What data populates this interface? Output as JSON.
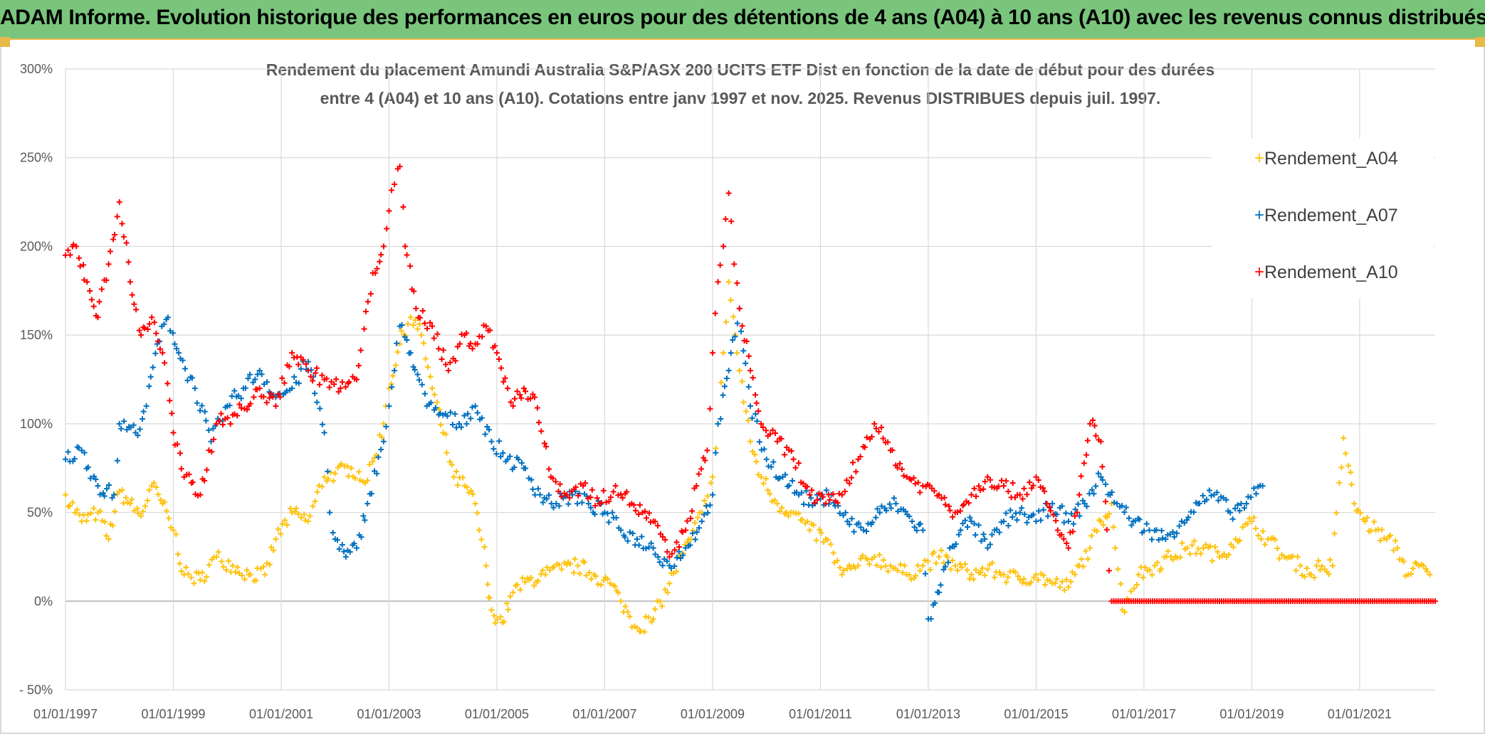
{
  "page_title": "ADAM Informe. Evolution historique des performances en euros pour des détentions de 4 ans (A04) à 10 ans (A10) avec les revenus connus distribués",
  "colors": {
    "banner": "#79c57c",
    "A04": "#ffc20e",
    "A07": "#0070c0",
    "A10": "#ff0000",
    "grid": "#d9d9d9",
    "text": "#595959"
  },
  "chart_data": {
    "type": "scatter",
    "title_lines": [
      "Rendement du placement Amundi Australia S&P/ASX 200 UCITS ETF Dist en fonction de la date de début pour des durées",
      "entre 4 (A04) et 10 ans (A10). Cotations entre janv 1997 et nov. 2025. Revenus DISTRIBUES depuis juil. 1997."
    ],
    "x_tick_labels": [
      "01/01/1997",
      "01/01/1999",
      "01/01/2001",
      "01/01/2003",
      "01/01/2005",
      "01/01/2007",
      "01/01/2009",
      "01/01/2011",
      "01/01/2013",
      "01/01/2015",
      "01/01/2017",
      "01/01/2019",
      "01/01/2021"
    ],
    "xlim": [
      1997.0,
      2022.4
    ],
    "y_tick_labels": [
      "300%",
      "250%",
      "200%",
      "150%",
      "100%",
      "50%",
      "0%",
      "- 50%"
    ],
    "y_ticks": [
      300,
      250,
      200,
      150,
      100,
      50,
      0,
      -50
    ],
    "ylim": [
      -50,
      300
    ],
    "legend": [
      "Rendement_A04",
      "Rendement_A07",
      "Rendement_A10"
    ],
    "legend_position": "right",
    "marker": "+",
    "series": [
      {
        "name": "Rendement_A04",
        "x": [
          1997.0,
          1997.3,
          1997.6,
          1997.8,
          1998.0,
          1998.2,
          1998.4,
          1998.6,
          1998.8,
          1999.0,
          1999.2,
          1999.5,
          1999.8,
          2000.1,
          2000.4,
          2000.7,
          2000.9,
          2001.2,
          2001.5,
          2001.8,
          2002.0,
          2002.3,
          2002.6,
          2002.9,
          2003.0,
          2003.2,
          2003.4,
          2003.6,
          2003.8,
          2004.0,
          2004.2,
          2004.4,
          2004.6,
          2004.8,
          2004.85,
          2004.9,
          2005.1,
          2005.3,
          2005.6,
          2005.9,
          2006.2,
          2006.5,
          2006.8,
          2007.1,
          2007.3,
          2007.6,
          2007.9,
          2008.2,
          2008.4,
          2008.6,
          2008.8,
          2009.0,
          2009.1,
          2009.2,
          2009.3,
          2009.5,
          2009.7,
          2009.9,
          2010.2,
          2010.5,
          2010.8,
          2011.1,
          2011.4,
          2011.7,
          2012.0,
          2012.3,
          2012.6,
          2012.9,
          2013.2,
          2013.5,
          2013.8,
          2014.1,
          2014.4,
          2014.7,
          2015.0,
          2015.3,
          2015.6,
          2015.8,
          2016.0,
          2016.2,
          2016.4,
          2016.6,
          2016.9,
          2017.2,
          2017.5,
          2017.8,
          2018.1,
          2018.4,
          2018.7,
          2019.0,
          2019.3,
          2019.6,
          2019.9,
          2020.1,
          2020.2,
          2020.35,
          2020.5,
          2020.7,
          2020.9,
          2021.1,
          2021.3,
          2021.5,
          2021.7,
          2021.9,
          2022.1,
          2022.3
        ],
        "y": [
          60,
          45,
          50,
          35,
          62,
          55,
          48,
          65,
          55,
          40,
          15,
          12,
          25,
          20,
          15,
          15,
          35,
          50,
          45,
          70,
          72,
          75,
          68,
          100,
          120,
          145,
          160,
          150,
          120,
          95,
          70,
          65,
          55,
          20,
          2,
          -5,
          -12,
          5,
          12,
          15,
          18,
          20,
          15,
          10,
          0,
          -15,
          -10,
          10,
          25,
          35,
          50,
          70,
          100,
          140,
          180,
          130,
          90,
          70,
          55,
          50,
          40,
          35,
          15,
          20,
          25,
          20,
          15,
          20,
          25,
          20,
          15,
          18,
          15,
          12,
          15,
          10,
          8,
          20,
          30,
          45,
          55,
          -5,
          15,
          20,
          25,
          30,
          30,
          25,
          35,
          45,
          35,
          25,
          20,
          15,
          20,
          18,
          20,
          92,
          55,
          45,
          40,
          35,
          30,
          15,
          20,
          15
        ]
      },
      {
        "name": "Rendement_A07",
        "x": [
          1997.0,
          1997.3,
          1997.6,
          1997.9,
          1998.0,
          1998.3,
          1998.5,
          1998.7,
          1998.9,
          1999.1,
          1999.4,
          1999.7,
          2000.0,
          2000.3,
          2000.6,
          2000.9,
          2001.2,
          2001.5,
          2001.8,
          2001.9,
          2002.0,
          2002.2,
          2002.4,
          2002.6,
          2002.9,
          2003.0,
          2003.1,
          2003.2,
          2003.4,
          2003.7,
          2004.0,
          2004.3,
          2004.6,
          2004.9,
          2005.2,
          2005.5,
          2005.8,
          2006.1,
          2006.4,
          2006.7,
          2007.0,
          2007.3,
          2007.6,
          2007.9,
          2008.2,
          2008.5,
          2008.8,
          2009.0,
          2009.1,
          2009.3,
          2009.5,
          2009.7,
          2010.0,
          2010.3,
          2010.6,
          2010.9,
          2011.2,
          2011.5,
          2011.8,
          2012.1,
          2012.4,
          2012.7,
          2012.9,
          2013.0,
          2013.2,
          2013.4,
          2013.6,
          2013.8,
          2014.1,
          2014.4,
          2014.7,
          2015.0,
          2015.3,
          2015.6,
          2015.9,
          2016.2,
          2016.5,
          2016.8,
          2017.1,
          2017.4,
          2017.7,
          2018.0,
          2018.3,
          2018.6,
          2018.9,
          2019.2
        ],
        "y": [
          80,
          85,
          65,
          60,
          100,
          95,
          110,
          145,
          160,
          140,
          120,
          90,
          110,
          120,
          130,
          115,
          120,
          135,
          95,
          50,
          35,
          25,
          30,
          55,
          90,
          110,
          130,
          155,
          140,
          110,
          105,
          100,
          110,
          90,
          80,
          75,
          60,
          55,
          60,
          55,
          50,
          40,
          35,
          30,
          20,
          30,
          45,
          60,
          100,
          130,
          165,
          110,
          80,
          70,
          60,
          55,
          60,
          45,
          40,
          50,
          55,
          45,
          40,
          -10,
          5,
          30,
          40,
          45,
          30,
          45,
          50,
          45,
          55,
          45,
          55,
          70,
          55,
          45,
          40,
          35,
          45,
          55,
          60,
          50,
          55,
          65
        ]
      },
      {
        "name": "Rendement_A10",
        "x": [
          1997.0,
          1997.2,
          1997.4,
          1997.6,
          1997.8,
          1998.0,
          1998.2,
          1998.4,
          1998.6,
          1998.8,
          1999.0,
          1999.2,
          1999.5,
          1999.8,
          2000.1,
          2000.4,
          2000.6,
          2000.9,
          2001.2,
          2001.5,
          2001.8,
          2002.1,
          2002.4,
          2002.7,
          2002.9,
          2003.0,
          2003.1,
          2003.2,
          2003.3,
          2003.5,
          2003.8,
          2004.1,
          2004.4,
          2004.6,
          2004.8,
          2005.0,
          2005.2,
          2005.3,
          2005.5,
          2005.7,
          2006.0,
          2006.3,
          2006.6,
          2006.9,
          2007.2,
          2007.5,
          2007.7,
          2007.9,
          2008.2,
          2008.5,
          2008.7,
          2008.9,
          2009.0,
          2009.1,
          2009.2,
          2009.3,
          2009.4,
          2009.5,
          2009.7,
          2009.9,
          2010.2,
          2010.5,
          2010.8,
          2011.1,
          2011.4,
          2011.7,
          2012.0,
          2012.3,
          2012.6,
          2012.9,
          2013.2,
          2013.5,
          2013.8,
          2014.1,
          2014.4,
          2014.7,
          2015.0,
          2015.2,
          2015.4,
          2015.6,
          2015.8,
          2016.0,
          2016.2,
          2016.4,
          2016.6,
          2016.8,
          2017.0,
          2017.2,
          2017.4,
          2017.6,
          2017.8,
          2018.0,
          2018.2,
          2018.4,
          2018.6,
          2018.8,
          2019.0,
          2019.2,
          2019.4,
          2019.6,
          2019.8,
          2020.0,
          2020.2,
          2020.4,
          2020.6,
          2020.8,
          2021.0,
          2021.2,
          2021.4,
          2021.6,
          2021.8,
          2022.0,
          2022.2,
          2022.4
        ],
        "y": [
          195,
          200,
          180,
          160,
          190,
          225,
          180,
          150,
          160,
          140,
          95,
          70,
          60,
          100,
          105,
          110,
          120,
          110,
          140,
          130,
          125,
          120,
          125,
          185,
          200,
          220,
          235,
          245,
          200,
          165,
          155,
          130,
          150,
          145,
          155,
          140,
          120,
          110,
          120,
          115,
          70,
          60,
          65,
          55,
          65,
          55,
          50,
          45,
          25,
          40,
          65,
          85,
          140,
          180,
          200,
          230,
          190,
          165,
          130,
          100,
          90,
          80,
          60,
          55,
          60,
          80,
          100,
          85,
          70,
          65,
          60,
          50,
          60,
          70,
          65,
          60,
          70,
          55,
          40,
          30,
          60,
          100,
          90,
          0,
          0,
          0,
          0,
          0,
          0,
          0,
          0,
          0,
          0,
          0,
          0,
          0,
          0,
          0,
          0,
          0,
          0,
          0,
          0,
          0,
          0,
          0,
          0,
          0,
          0,
          0,
          0,
          0,
          0,
          0
        ]
      }
    ]
  }
}
